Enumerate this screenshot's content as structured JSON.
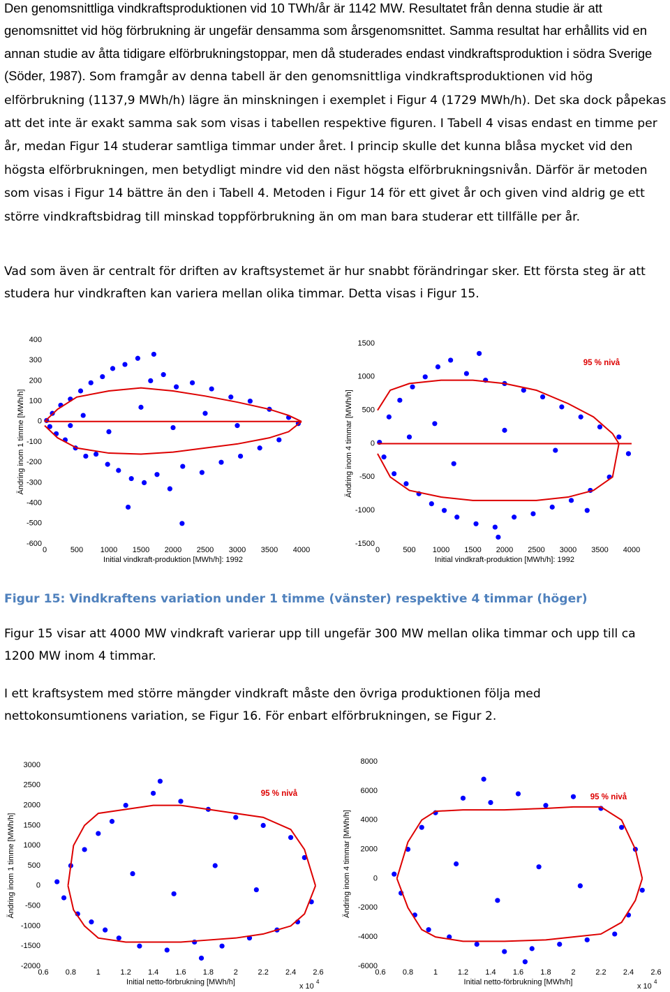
{
  "document": {
    "paragraph_1": [
      "Den genomsnittliga vindkraftsproduktionen vid 10 TWh/år är 1142 MW. Resultatet från denna studie är att genomsnittet vid hög förbrukning är ungefär densamma som årsgenomsnittet. Samma resultat har erhållits vid en annan studie av åtta tidigare elförbrukningstoppar, men då studerades endast vindkraftsproduktion i södra Sverige (Söder, 1987).",
      " Som framgår av denna tabell är den genomsnittliga vindkraftsproduktionen vid hög elförbrukning (1137,9 MWh/h) lägre än minskningen i exemplet i Figur 4 (1729 MWh/h). Det ska dock påpekas att det inte är exakt samma sak som visas i tabellen respektive figuren. I Tabell 4 visas endast en timme per år, medan Figur 14 studerar samtliga timmar under året. I princip skulle det kunna blåsa mycket vid den högsta elförbrukningen, men betydligt mindre vid den näst högsta elförbrukningsnivån. Därför är metoden som visas i Figur 14 bättre än den i Tabell 4. Metoden i Figur 14 för ett givet år och given vind aldrig ge ett större vindkraftsbidrag till minskad toppförbrukning än om man bara studerar ett tillfälle per år."
    ],
    "paragraph_2": "Vad som även är centralt för driften av kraftsystemet är hur snabbt förändringar sker. Ett första steg är att studera hur vindkraften kan variera mellan olika timmar. Detta visas i Figur 15.",
    "figure_caption": "Figur 15: Vindkraftens variation under 1 timme (vänster) respektive 4 timmar (höger)",
    "paragraph_3": "Figur 15 visar att 4000 MW vindkraft varierar upp till ungefär 300 MW mellan olika timmar och upp till ca 1200 MW inom 4 timmar.",
    "paragraph_4": "I ett kraftsystem med större mängder vindkraft måste den övriga produktionen följa med nettokonsumtionens variation, se Figur 16. För enbart elförbrukningen, se Figur 2."
  },
  "chart_data": [
    {
      "type": "scatter",
      "y_label": "Ändring inom 1 timme [MWh/h]",
      "x_label": "Initial vindkraft-produktion [MWh/h]: 1992",
      "xlim": [
        0,
        4000
      ],
      "ylim": [
        -600,
        400
      ],
      "xticks": [
        0,
        500,
        1000,
        1500,
        2000,
        2500,
        3000,
        3500,
        4000
      ],
      "yticks": [
        -600,
        -500,
        -400,
        -300,
        -200,
        -100,
        0,
        100,
        200,
        300,
        400
      ],
      "series": [
        {
          "mode": "markers",
          "color": "#0000ff",
          "x": [
            30,
            80,
            120,
            180,
            250,
            320,
            400,
            480,
            560,
            640,
            720,
            800,
            900,
            980,
            1060,
            1150,
            1250,
            1350,
            1450,
            1550,
            1650,
            1750,
            1850,
            1950,
            2050,
            2150,
            2300,
            2450,
            2600,
            2750,
            2900,
            3050,
            3200,
            3350,
            3500,
            3650,
            3800,
            3950,
            1300,
            2140,
            1700,
            600,
            1000,
            1500,
            2000,
            2500,
            3000,
            400
          ],
          "values": [
            5,
            -25,
            40,
            -60,
            80,
            -90,
            110,
            -130,
            150,
            -170,
            190,
            -160,
            220,
            -210,
            260,
            -240,
            280,
            -280,
            310,
            -300,
            200,
            -260,
            230,
            -330,
            170,
            -220,
            190,
            -250,
            160,
            -200,
            120,
            -170,
            100,
            -130,
            60,
            -90,
            20,
            -10,
            -420,
            -500,
            330,
            30,
            -50,
            70,
            -30,
            40,
            -20,
            -20
          ]
        },
        {
          "mode": "line",
          "color": "#dd0000",
          "x": [
            0,
            200,
            500,
            1000,
            1500,
            2000,
            2500,
            3000,
            3500,
            3800,
            4000
          ],
          "values": [
            0,
            60,
            120,
            150,
            165,
            150,
            125,
            95,
            60,
            30,
            0
          ]
        },
        {
          "mode": "line",
          "color": "#dd0000",
          "x": [
            0,
            200,
            500,
            1000,
            1500,
            2000,
            2500,
            3000,
            3500,
            3800,
            4000
          ],
          "values": [
            -20,
            -80,
            -130,
            -155,
            -160,
            -150,
            -130,
            -110,
            -80,
            -50,
            0
          ]
        },
        {
          "mode": "line",
          "color": "#dd0000",
          "x": [
            0,
            4000
          ],
          "values": [
            0,
            0
          ]
        }
      ]
    },
    {
      "type": "scatter",
      "y_label": "Ändring inom 4 timmar [MWh/h]",
      "x_label": "Initial vindkraft-produktion [MWh/h]: 1992",
      "annotation": "95 % nivå",
      "xlim": [
        0,
        4000
      ],
      "ylim": [
        -1500,
        1500
      ],
      "xticks": [
        0,
        500,
        1000,
        1500,
        2000,
        2500,
        3000,
        3500,
        4000
      ],
      "yticks": [
        -1500,
        -1000,
        -500,
        0,
        500,
        1000,
        1500
      ],
      "series": [
        {
          "mode": "markers",
          "color": "#0000ff",
          "x": [
            30,
            100,
            180,
            260,
            350,
            450,
            550,
            650,
            750,
            850,
            950,
            1050,
            1150,
            1250,
            1400,
            1550,
            1700,
            1850,
            2000,
            2150,
            2300,
            2450,
            2600,
            2750,
            2900,
            3050,
            3200,
            3350,
            3500,
            3650,
            3800,
            3950,
            500,
            1200,
            2000,
            2800,
            1600,
            1900,
            900,
            3300
          ],
          "values": [
            20,
            -200,
            400,
            -450,
            650,
            -600,
            850,
            -750,
            1000,
            -900,
            1150,
            -1000,
            1250,
            -1100,
            1050,
            -1200,
            950,
            -1250,
            900,
            -1100,
            800,
            -1050,
            700,
            -950,
            550,
            -850,
            400,
            -700,
            250,
            -500,
            100,
            -150,
            100,
            -300,
            200,
            -100,
            1350,
            -1400,
            300,
            -1000
          ]
        },
        {
          "mode": "line",
          "color": "#dd0000",
          "x": [
            0,
            200,
            500,
            1000,
            1500,
            2000,
            2500,
            3000,
            3400,
            3700,
            3800
          ],
          "values": [
            500,
            800,
            900,
            950,
            950,
            900,
            800,
            600,
            400,
            150,
            0
          ]
        },
        {
          "mode": "line",
          "color": "#dd0000",
          "x": [
            0,
            200,
            500,
            1000,
            1500,
            2000,
            2500,
            3000,
            3400,
            3700,
            3800
          ],
          "values": [
            -150,
            -500,
            -700,
            -800,
            -850,
            -850,
            -850,
            -800,
            -700,
            -500,
            0
          ]
        },
        {
          "mode": "line",
          "color": "#dd0000",
          "x": [
            0,
            4000
          ],
          "values": [
            0,
            0
          ]
        }
      ]
    },
    {
      "type": "scatter",
      "y_label": "Ändring inom 1 timme [MWh/h]",
      "x_label": "Initial netto-förbrukning [MWh/h]",
      "annotation": "95 % nivå",
      "x_multiplier": "x 10",
      "x_multiplier_exponent": "4",
      "xlim": [
        0.6,
        2.6
      ],
      "ylim": [
        -2000,
        3000
      ],
      "xticks": [
        0.6,
        0.8,
        1,
        1.2,
        1.4,
        1.6,
        1.8,
        2,
        2.2,
        2.4,
        2.6
      ],
      "yticks": [
        -2000,
        -1500,
        -1000,
        -500,
        0,
        500,
        1000,
        1500,
        2000,
        2500,
        3000
      ],
      "series": [
        {
          "mode": "markers",
          "color": "#0000ff",
          "x": [
            0.7,
            0.75,
            0.8,
            0.85,
            0.9,
            0.95,
            1.0,
            1.05,
            1.1,
            1.15,
            1.2,
            1.3,
            1.4,
            1.5,
            1.6,
            1.7,
            1.8,
            1.9,
            2.0,
            2.1,
            2.2,
            2.3,
            2.4,
            2.45,
            2.5,
            2.55,
            1.25,
            1.55,
            1.85,
            2.15,
            1.45,
            1.75
          ],
          "values": [
            100,
            -300,
            500,
            -700,
            900,
            -900,
            1300,
            -1100,
            1600,
            -1300,
            2000,
            -1500,
            2300,
            -1600,
            2100,
            -1400,
            1900,
            -1500,
            1700,
            -1300,
            1500,
            -1100,
            1200,
            -900,
            700,
            -400,
            300,
            -200,
            500,
            -100,
            2600,
            -1800
          ]
        },
        {
          "mode": "line",
          "color": "#dd0000",
          "x": [
            0.78,
            0.82,
            0.9,
            1.0,
            1.2,
            1.4,
            1.6,
            1.8,
            2.0,
            2.2,
            2.4,
            2.5,
            2.58
          ],
          "values": [
            0,
            1000,
            1500,
            1800,
            1900,
            2000,
            2000,
            1900,
            1800,
            1700,
            1400,
            900,
            0
          ]
        },
        {
          "mode": "line",
          "color": "#dd0000",
          "x": [
            0.78,
            0.82,
            0.9,
            1.0,
            1.2,
            1.4,
            1.6,
            1.8,
            2.0,
            2.2,
            2.4,
            2.5,
            2.58
          ],
          "values": [
            0,
            -600,
            -1000,
            -1300,
            -1400,
            -1400,
            -1400,
            -1350,
            -1300,
            -1200,
            -1000,
            -700,
            0
          ]
        }
      ]
    },
    {
      "type": "scatter",
      "y_label": "Ändring inom 4 timmar [MWh/h]",
      "x_label": "Initial netto-förbrukning [MWh/h]",
      "annotation": "95 % nivå",
      "x_multiplier": "x 10",
      "x_multiplier_exponent": "4",
      "xlim": [
        0.6,
        2.6
      ],
      "ylim": [
        -6000,
        8000
      ],
      "xticks": [
        0.6,
        0.8,
        1,
        1.2,
        1.4,
        1.6,
        1.8,
        2,
        2.2,
        2.4,
        2.6
      ],
      "yticks": [
        -6000,
        -4000,
        -2000,
        0,
        2000,
        4000,
        6000,
        8000
      ],
      "series": [
        {
          "mode": "markers",
          "color": "#0000ff",
          "x": [
            0.7,
            0.75,
            0.8,
            0.85,
            0.9,
            0.95,
            1.0,
            1.1,
            1.2,
            1.3,
            1.4,
            1.5,
            1.6,
            1.7,
            1.8,
            1.9,
            2.0,
            2.1,
            2.2,
            2.3,
            2.35,
            2.4,
            2.45,
            2.5,
            1.15,
            1.45,
            1.75,
            2.05,
            1.35,
            1.65
          ],
          "values": [
            300,
            -1000,
            2000,
            -2500,
            3500,
            -3500,
            4500,
            -4000,
            5500,
            -4500,
            5200,
            -5000,
            5800,
            -4800,
            5000,
            -4500,
            5600,
            -4200,
            4800,
            -3800,
            3500,
            -2500,
            2000,
            -800,
            1000,
            -1500,
            800,
            -500,
            6800,
            -5700
          ]
        },
        {
          "mode": "line",
          "color": "#dd0000",
          "x": [
            0.72,
            0.8,
            0.9,
            1.0,
            1.2,
            1.5,
            1.8,
            2.0,
            2.2,
            2.35,
            2.45,
            2.5
          ],
          "values": [
            0,
            2500,
            4000,
            4600,
            4700,
            4700,
            4800,
            4900,
            4900,
            4000,
            2000,
            0
          ]
        },
        {
          "mode": "line",
          "color": "#dd0000",
          "x": [
            0.72,
            0.8,
            0.9,
            1.0,
            1.2,
            1.5,
            1.8,
            2.0,
            2.2,
            2.35,
            2.45,
            2.5
          ],
          "values": [
            0,
            -2000,
            -3500,
            -4000,
            -4300,
            -4300,
            -4200,
            -4000,
            -3800,
            -3000,
            -1500,
            0
          ]
        }
      ]
    }
  ]
}
